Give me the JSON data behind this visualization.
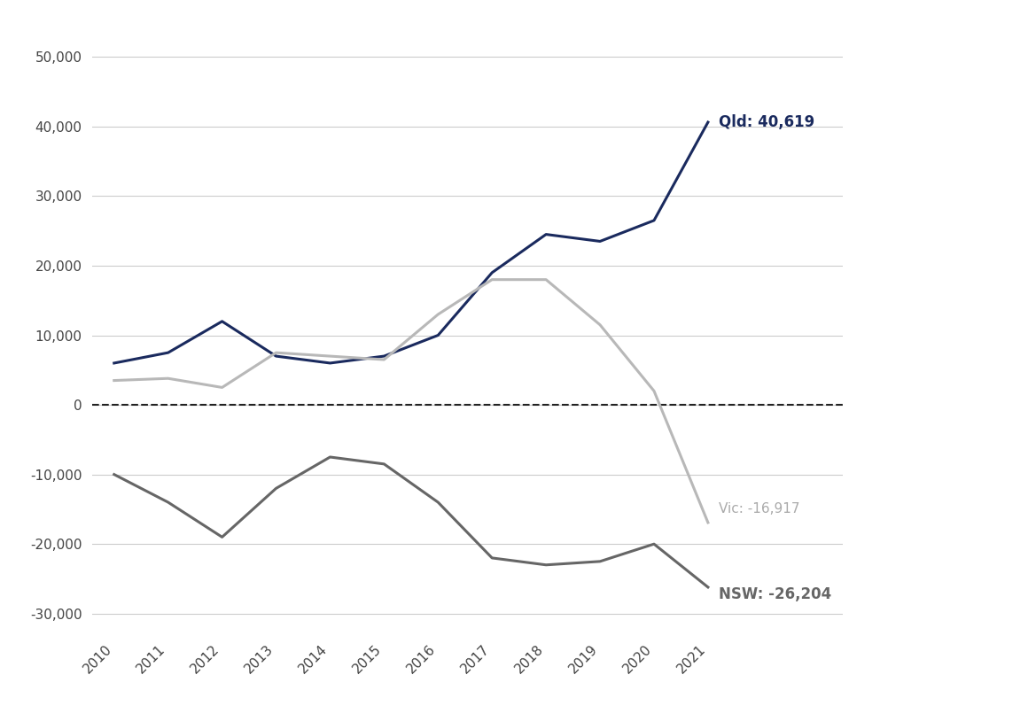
{
  "years": [
    2010,
    2011,
    2012,
    2013,
    2014,
    2015,
    2016,
    2017,
    2018,
    2019,
    2020,
    2021
  ],
  "qld": [
    6000,
    7500,
    12000,
    7000,
    6000,
    7000,
    10000,
    19000,
    24500,
    23500,
    26500,
    40619
  ],
  "vic": [
    3500,
    3800,
    2500,
    7500,
    7000,
    6500,
    13000,
    18000,
    18000,
    11500,
    2000,
    -16917
  ],
  "nsw": [
    -10000,
    -14000,
    -19000,
    -12000,
    -7500,
    -8500,
    -14000,
    -22000,
    -23000,
    -22500,
    -20000,
    -26204
  ],
  "qld_color": "#1a2a5e",
  "vic_color": "#b8b8b8",
  "nsw_color": "#666666",
  "dashed_zero_color": "#222222",
  "grid_color": "#cccccc",
  "background_color": "#ffffff",
  "ylim": [
    -33000,
    53000
  ],
  "yticks": [
    -30000,
    -20000,
    -10000,
    0,
    10000,
    20000,
    30000,
    40000,
    50000
  ],
  "qld_label": "Qld: 40,619",
  "vic_label": "Vic: -16,917",
  "nsw_label": "NSW: -26,204",
  "line_width": 2.2
}
